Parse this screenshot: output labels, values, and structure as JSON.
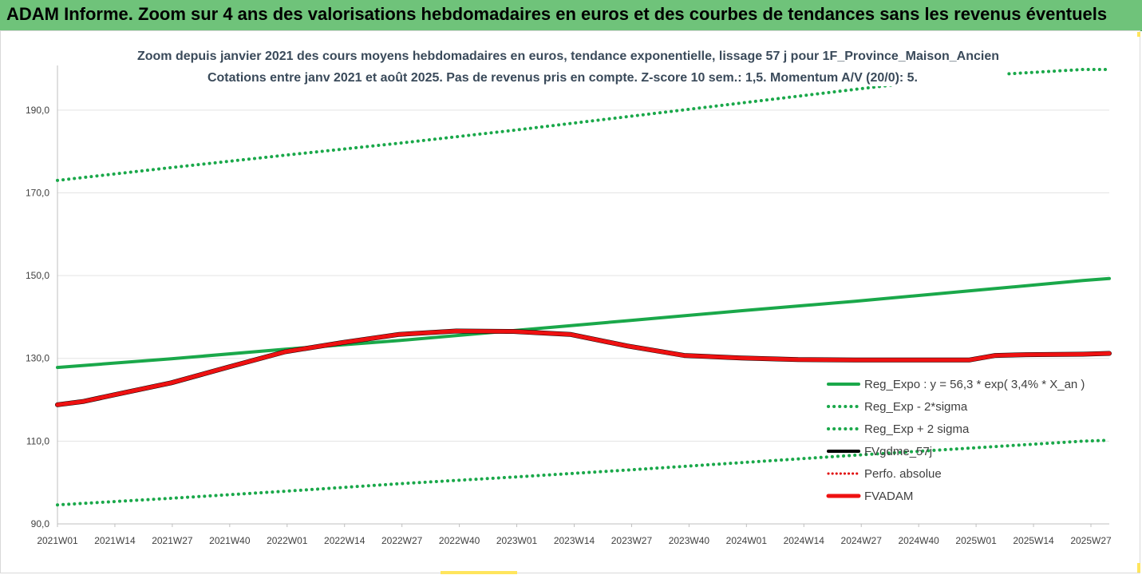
{
  "banner": {
    "title": "ADAM Informe. Zoom sur 4 ans des valorisations hebdomadaires en euros et des courbes de tendances sans les revenus éventuels"
  },
  "colors": {
    "banner_bg": "#6fc37a",
    "reg_expo": "#1aa84a",
    "sigma": "#1aa84a",
    "fvgdme": "#000000",
    "perfo": "#e00000",
    "fvadam": "#ee1111",
    "accent": "#ffe55c"
  },
  "chart_data": {
    "type": "line",
    "title": "Zoom depuis janvier 2021 des cours moyens hebdomadaires en euros, tendance exponentielle, lissage 57 j pour 1F_Province_Maison_Ancien",
    "subtitle": "Cotations entre janv 2021 et août 2025.  Pas de revenus pris en compte. Z-score 10 sem.: 1,5. Momentum A/V (20/0): 5.",
    "xlabel": "",
    "ylabel": "",
    "x_tick_labels": [
      "2021W01",
      "2021W14",
      "2021W27",
      "2021W40",
      "2022W01",
      "2022W14",
      "2022W27",
      "2022W40",
      "2023W01",
      "2023W14",
      "2023W27",
      "2023W40",
      "2024W01",
      "2024W14",
      "2024W27",
      "2024W40",
      "2025W01",
      "2025W14",
      "2025W27"
    ],
    "x_range_weeks": [
      0,
      240
    ],
    "ylim": [
      90,
      200
    ],
    "y_ticks": [
      90,
      110,
      130,
      150,
      170,
      190
    ],
    "y_tick_labels": [
      "90,0",
      "110,0",
      "130,0",
      "150,0",
      "170,0",
      "190,0"
    ],
    "grid": "horizontal",
    "legend_position": "bottom-right",
    "series": [
      {
        "name": "Reg_Expo : y = 56,3 * exp( 3,4% *  X_an )",
        "style": "solid",
        "x": [
          0,
          26,
          52,
          78,
          104,
          130,
          156,
          182,
          208,
          234,
          240
        ],
        "values": [
          127.8,
          129.9,
          132.2,
          134.3,
          136.7,
          139.1,
          141.5,
          143.8,
          146.3,
          148.8,
          149.3
        ]
      },
      {
        "name": "Reg_Exp - 2*sigma",
        "style": "dotted",
        "x": [
          0,
          26,
          52,
          78,
          104,
          130,
          156,
          182,
          208,
          234,
          240
        ],
        "values": [
          94.6,
          96.2,
          97.9,
          99.7,
          101.3,
          103.0,
          104.8,
          106.6,
          108.3,
          110.0,
          110.2
        ]
      },
      {
        "name": "Reg_Exp + 2 sigma",
        "style": "dotted",
        "x": [
          0,
          26,
          52,
          78,
          104,
          130,
          156,
          182,
          208,
          234,
          240
        ],
        "values": [
          173.0,
          176.1,
          179.1,
          182.0,
          185.1,
          188.4,
          191.7,
          195.0,
          198.2,
          199.8,
          199.8
        ]
      },
      {
        "name": "FVgdme_57j",
        "style": "solid",
        "x": [
          0,
          6,
          13,
          26,
          39,
          52,
          65,
          78,
          91,
          104,
          117,
          130,
          143,
          156,
          169,
          182,
          195,
          208,
          214,
          221,
          234,
          240
        ],
        "values": [
          118.8,
          119.6,
          121.2,
          124.1,
          127.9,
          131.6,
          133.8,
          135.8,
          136.6,
          136.5,
          135.8,
          133.0,
          130.7,
          130.1,
          129.7,
          129.6,
          129.6,
          129.6,
          130.7,
          130.9,
          131.0,
          131.2
        ]
      },
      {
        "name": "Perfo. absolue",
        "style": "dotted",
        "x": [],
        "values": []
      },
      {
        "name": "FVADAM",
        "style": "solid-thick",
        "x": [
          0,
          6,
          13,
          26,
          39,
          52,
          65,
          78,
          91,
          104,
          117,
          130,
          143,
          156,
          169,
          182,
          195,
          208,
          214,
          221,
          234,
          240
        ],
        "values": [
          118.8,
          119.6,
          121.2,
          124.1,
          127.9,
          131.6,
          133.8,
          135.8,
          136.6,
          136.5,
          135.8,
          133.0,
          130.7,
          130.1,
          129.7,
          129.6,
          129.6,
          129.6,
          130.7,
          130.9,
          131.0,
          131.2
        ]
      }
    ]
  }
}
